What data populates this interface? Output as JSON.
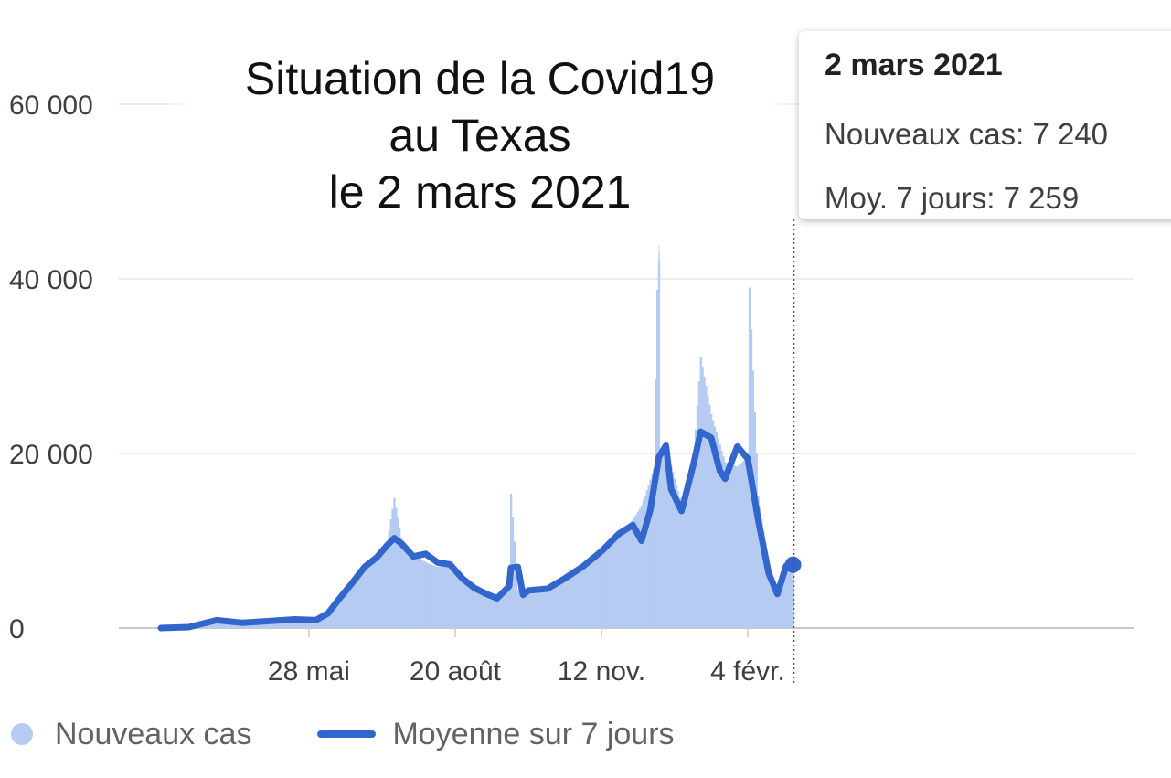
{
  "colors": {
    "bars": "#b5cbf2",
    "line": "#3366cc",
    "grid": "#e6e6e6",
    "axis": "#c9c9c9",
    "crosshair": "#555555"
  },
  "title_lines": [
    "Situation de la Covid19",
    "au Texas",
    "le 2 mars 2021"
  ],
  "tooltip": {
    "date": "2 mars 2021",
    "new_cases_label": "Nouveaux cas: 7 240",
    "avg_label": "Moy. 7 jours: 7 259"
  },
  "legend": {
    "new_cases": "Nouveaux cas",
    "avg": "Moyenne sur 7 jours"
  },
  "chart_data": {
    "type": "bar",
    "title": "",
    "xlabel": "",
    "ylabel": "",
    "ylim": [
      0,
      60000
    ],
    "y_ticks": [
      0,
      20000,
      40000,
      60000
    ],
    "y_tick_labels": [
      "0",
      "20 000",
      "40 000",
      "60 000"
    ],
    "x_ticks": [
      {
        "date": "2020-05-28",
        "label": "28 mai"
      },
      {
        "date": "2020-08-20",
        "label": "20 août"
      },
      {
        "date": "2020-11-12",
        "label": "12 nov."
      },
      {
        "date": "2021-02-04",
        "label": "4 févr."
      }
    ],
    "x_start": "2020-03-04",
    "x_end": "2021-03-02",
    "series": [
      {
        "name": "Nouveaux cas",
        "kind": "bar",
        "points": [
          [
            "2020-03-04",
            0
          ],
          [
            "2020-03-20",
            100
          ],
          [
            "2020-04-05",
            900
          ],
          [
            "2020-04-20",
            800
          ],
          [
            "2020-05-05",
            1000
          ],
          [
            "2020-05-20",
            1200
          ],
          [
            "2020-06-01",
            1300
          ],
          [
            "2020-06-08",
            1900
          ],
          [
            "2020-06-15",
            3800
          ],
          [
            "2020-06-22",
            5400
          ],
          [
            "2020-06-29",
            7200
          ],
          [
            "2020-07-06",
            8200
          ],
          [
            "2020-07-12",
            10000
          ],
          [
            "2020-07-16",
            14900
          ],
          [
            "2020-07-20",
            10300
          ],
          [
            "2020-07-27",
            8600
          ],
          [
            "2020-08-03",
            7500
          ],
          [
            "2020-08-10",
            7000
          ],
          [
            "2020-08-17",
            7200
          ],
          [
            "2020-08-24",
            6000
          ],
          [
            "2020-08-31",
            4800
          ],
          [
            "2020-09-07",
            3800
          ],
          [
            "2020-09-13",
            3400
          ],
          [
            "2020-09-20",
            4800
          ],
          [
            "2020-09-21",
            15400
          ],
          [
            "2020-09-25",
            4400
          ],
          [
            "2020-10-01",
            4300
          ],
          [
            "2020-10-12",
            4500
          ],
          [
            "2020-10-22",
            5800
          ],
          [
            "2020-11-01",
            7200
          ],
          [
            "2020-11-12",
            9200
          ],
          [
            "2020-11-22",
            11000
          ],
          [
            "2020-11-30",
            12400
          ],
          [
            "2020-12-05",
            14000
          ],
          [
            "2020-12-12",
            18200
          ],
          [
            "2020-12-15",
            49000
          ],
          [
            "2020-12-16",
            20000
          ],
          [
            "2020-12-22",
            18600
          ],
          [
            "2020-12-28",
            14200
          ],
          [
            "2021-01-04",
            20000
          ],
          [
            "2021-01-08",
            31000
          ],
          [
            "2021-01-14",
            24500
          ],
          [
            "2021-01-19",
            21000
          ],
          [
            "2021-01-22",
            19000
          ],
          [
            "2021-01-29",
            18500
          ],
          [
            "2021-02-04",
            19600
          ],
          [
            "2021-02-05",
            39000
          ],
          [
            "2021-02-10",
            15200
          ],
          [
            "2021-02-16",
            7100
          ],
          [
            "2021-02-21",
            4000
          ],
          [
            "2021-02-26",
            6800
          ],
          [
            "2021-03-02",
            7240
          ]
        ]
      },
      {
        "name": "Moyenne sur 7 jours",
        "kind": "line",
        "points": [
          [
            "2020-03-04",
            0
          ],
          [
            "2020-03-20",
            100
          ],
          [
            "2020-04-05",
            900
          ],
          [
            "2020-04-20",
            600
          ],
          [
            "2020-05-05",
            800
          ],
          [
            "2020-05-20",
            1000
          ],
          [
            "2020-06-01",
            900
          ],
          [
            "2020-06-08",
            1700
          ],
          [
            "2020-06-15",
            3500
          ],
          [
            "2020-06-22",
            5200
          ],
          [
            "2020-06-29",
            7000
          ],
          [
            "2020-07-06",
            8100
          ],
          [
            "2020-07-12",
            9500
          ],
          [
            "2020-07-16",
            10300
          ],
          [
            "2020-07-20",
            9700
          ],
          [
            "2020-07-27",
            8200
          ],
          [
            "2020-08-03",
            8500
          ],
          [
            "2020-08-10",
            7500
          ],
          [
            "2020-08-17",
            7300
          ],
          [
            "2020-08-24",
            5700
          ],
          [
            "2020-08-31",
            4600
          ],
          [
            "2020-09-07",
            3900
          ],
          [
            "2020-09-13",
            3400
          ],
          [
            "2020-09-20",
            4800
          ],
          [
            "2020-09-21",
            6900
          ],
          [
            "2020-09-25",
            7000
          ],
          [
            "2020-09-28",
            3800
          ],
          [
            "2020-10-01",
            4300
          ],
          [
            "2020-10-12",
            4500
          ],
          [
            "2020-10-22",
            5700
          ],
          [
            "2020-11-01",
            7000
          ],
          [
            "2020-11-12",
            8800
          ],
          [
            "2020-11-22",
            10800
          ],
          [
            "2020-11-30",
            11800
          ],
          [
            "2020-12-05",
            10000
          ],
          [
            "2020-12-10",
            13500
          ],
          [
            "2020-12-15",
            19600
          ],
          [
            "2020-12-19",
            20900
          ],
          [
            "2020-12-22",
            15900
          ],
          [
            "2020-12-28",
            13400
          ],
          [
            "2021-01-04",
            18900
          ],
          [
            "2021-01-08",
            22500
          ],
          [
            "2021-01-14",
            21800
          ],
          [
            "2021-01-19",
            18000
          ],
          [
            "2021-01-22",
            17100
          ],
          [
            "2021-01-29",
            20800
          ],
          [
            "2021-02-04",
            19400
          ],
          [
            "2021-02-10",
            12400
          ],
          [
            "2021-02-16",
            6300
          ],
          [
            "2021-02-21",
            3900
          ],
          [
            "2021-02-26",
            7100
          ],
          [
            "2021-03-02",
            7259
          ]
        ]
      }
    ]
  }
}
